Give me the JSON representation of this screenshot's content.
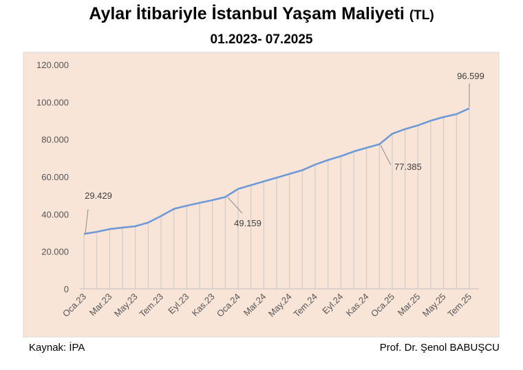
{
  "title": {
    "main": "Aylar İtibariyle İstanbul Yaşam Maliyeti",
    "unit": "(TL)",
    "subtitle": "01.2023- 07.2025"
  },
  "footer": {
    "source": "Kaynak: İPA",
    "author": "Prof. Dr. Şenol BABUŞCU"
  },
  "colors": {
    "plot_background": "#f9e4d8",
    "line": "#6d9ad6",
    "gridline": "#c8c8c8",
    "axis_text": "#555555"
  },
  "chart_data": {
    "type": "line",
    "title": "Aylar İtibariyle İstanbul Yaşam Maliyeti (TL)",
    "subtitle": "01.2023- 07.2025",
    "xlabel": "",
    "ylabel": "",
    "ylim": [
      0,
      120000
    ],
    "yticks": [
      0,
      20000,
      40000,
      60000,
      80000,
      100000,
      120000
    ],
    "ytick_labels": [
      "0",
      "20.000",
      "40.000",
      "60.000",
      "80.000",
      "100.000",
      "120.000"
    ],
    "grid": "vertical drop lines",
    "legend": "none",
    "categories": [
      "Oca.23",
      "Şub.23",
      "Mar.23",
      "Nis.23",
      "May.23",
      "Haz.23",
      "Tem.23",
      "Ağu.23",
      "Eyl.23",
      "Eki.23",
      "Kas.23",
      "Ara.23",
      "Oca.24",
      "Şub.24",
      "Mar.24",
      "Nis.24",
      "May.24",
      "Haz.24",
      "Tem.24",
      "Ağu.24",
      "Eyl.24",
      "Eki.24",
      "Kas.24",
      "Ara.24",
      "Oca.25",
      "Şub.25",
      "Mar.25",
      "Nis.25",
      "May.25",
      "Haz.25",
      "Tem.25"
    ],
    "tick_labels_shown": [
      "Oca.23",
      "Mar.23",
      "May.23",
      "Tem.23",
      "Eyl.23",
      "Kas.23",
      "Oca.24",
      "Mar.24",
      "May.24",
      "Tem.24",
      "Eyl.24",
      "Kas.24",
      "Oca.25",
      "Mar.25",
      "May.25",
      "Tem.25"
    ],
    "series": [
      {
        "values": [
          29429,
          30500,
          32000,
          32800,
          33500,
          35500,
          39000,
          42800,
          44500,
          46000,
          47500,
          49159,
          53500,
          55500,
          57500,
          59500,
          61500,
          63500,
          66500,
          69000,
          71000,
          73500,
          75500,
          77385,
          83000,
          85500,
          87500,
          90000,
          92000,
          93500,
          96599
        ]
      }
    ],
    "annotations": [
      {
        "index": 0,
        "label": "29.429"
      },
      {
        "index": 11,
        "label": "49.159"
      },
      {
        "index": 23,
        "label": "77.385"
      },
      {
        "index": 30,
        "label": "96.599"
      }
    ]
  }
}
